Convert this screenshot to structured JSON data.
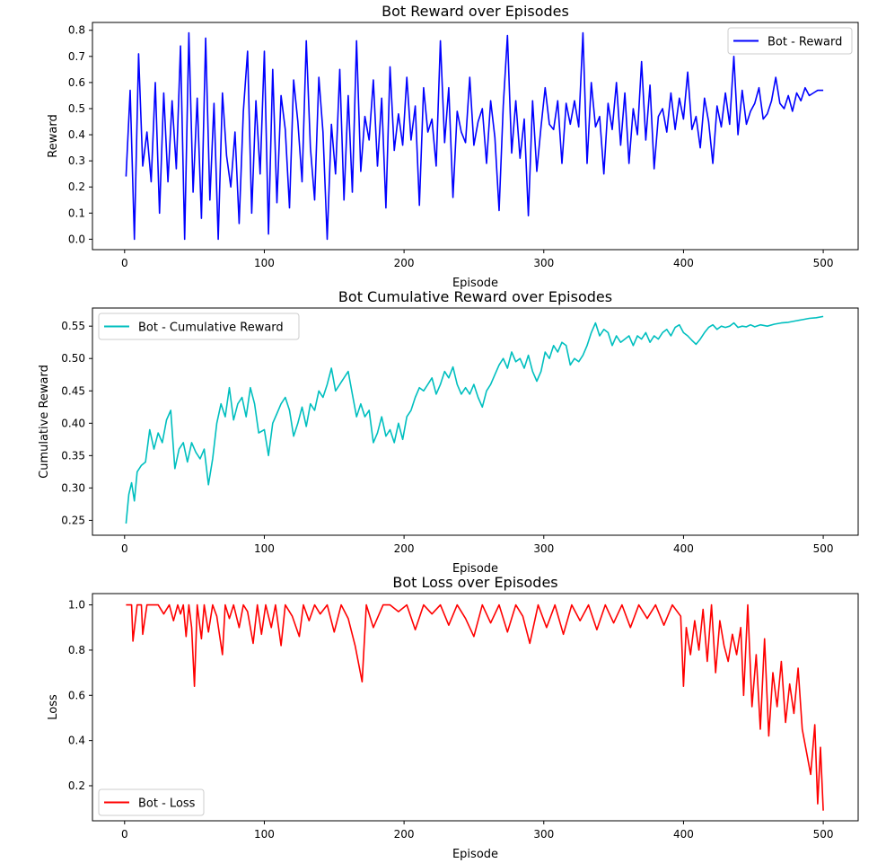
{
  "chart_data": [
    {
      "type": "line",
      "title": "Bot Reward over Episodes",
      "xlabel": "Episode",
      "ylabel": "Reward",
      "xlim": [
        -23,
        525
      ],
      "ylim": [
        -0.04,
        0.83
      ],
      "xticks": [
        0,
        100,
        200,
        300,
        400,
        500
      ],
      "yticks": [
        0.0,
        0.1,
        0.2,
        0.3,
        0.4,
        0.5,
        0.6,
        0.7,
        0.8
      ],
      "ytick_labels": [
        "0.0",
        "0.1",
        "0.2",
        "0.3",
        "0.4",
        "0.5",
        "0.6",
        "0.7",
        "0.8"
      ],
      "legend": "upper right",
      "series": [
        {
          "name": "Bot - Reward",
          "color": "#0000ff",
          "x": [
            1,
            4,
            7,
            10,
            13,
            16,
            19,
            22,
            25,
            28,
            31,
            34,
            37,
            40,
            43,
            46,
            49,
            52,
            55,
            58,
            61,
            64,
            67,
            70,
            73,
            76,
            79,
            82,
            85,
            88,
            91,
            94,
            97,
            100,
            103,
            106,
            109,
            112,
            115,
            118,
            121,
            124,
            127,
            130,
            133,
            136,
            139,
            142,
            145,
            148,
            151,
            154,
            157,
            160,
            163,
            166,
            169,
            172,
            175,
            178,
            181,
            184,
            187,
            190,
            193,
            196,
            199,
            202,
            205,
            208,
            211,
            214,
            217,
            220,
            223,
            226,
            229,
            232,
            235,
            238,
            241,
            244,
            247,
            250,
            253,
            256,
            259,
            262,
            265,
            268,
            271,
            274,
            277,
            280,
            283,
            286,
            289,
            292,
            295,
            298,
            301,
            304,
            307,
            310,
            313,
            316,
            319,
            322,
            325,
            328,
            331,
            334,
            337,
            340,
            343,
            346,
            349,
            352,
            355,
            358,
            361,
            364,
            367,
            370,
            373,
            376,
            379,
            382,
            385,
            388,
            391,
            394,
            397,
            400,
            403,
            406,
            409,
            412,
            415,
            418,
            421,
            424,
            427,
            430,
            433,
            436,
            439,
            442,
            445,
            448,
            451,
            454,
            457,
            460,
            463,
            466,
            469,
            472,
            475,
            478,
            481,
            484,
            487,
            490,
            493,
            496,
            499,
            500
          ],
          "y": [
            0.24,
            0.57,
            0.0,
            0.71,
            0.28,
            0.41,
            0.22,
            0.6,
            0.1,
            0.56,
            0.22,
            0.53,
            0.27,
            0.74,
            0.0,
            0.79,
            0.18,
            0.54,
            0.08,
            0.77,
            0.15,
            0.52,
            0.0,
            0.56,
            0.32,
            0.2,
            0.41,
            0.06,
            0.49,
            0.72,
            0.1,
            0.53,
            0.25,
            0.72,
            0.02,
            0.65,
            0.14,
            0.55,
            0.42,
            0.12,
            0.61,
            0.45,
            0.22,
            0.76,
            0.35,
            0.15,
            0.62,
            0.41,
            0.0,
            0.44,
            0.25,
            0.65,
            0.15,
            0.55,
            0.18,
            0.76,
            0.26,
            0.47,
            0.38,
            0.61,
            0.28,
            0.54,
            0.12,
            0.66,
            0.34,
            0.48,
            0.36,
            0.62,
            0.38,
            0.51,
            0.13,
            0.58,
            0.41,
            0.46,
            0.28,
            0.76,
            0.37,
            0.58,
            0.16,
            0.49,
            0.41,
            0.37,
            0.62,
            0.36,
            0.45,
            0.5,
            0.29,
            0.53,
            0.39,
            0.11,
            0.51,
            0.78,
            0.33,
            0.53,
            0.31,
            0.46,
            0.09,
            0.53,
            0.26,
            0.43,
            0.58,
            0.44,
            0.42,
            0.53,
            0.29,
            0.52,
            0.44,
            0.53,
            0.43,
            0.79,
            0.29,
            0.6,
            0.43,
            0.47,
            0.25,
            0.52,
            0.42,
            0.6,
            0.36,
            0.56,
            0.29,
            0.5,
            0.4,
            0.68,
            0.38,
            0.59,
            0.27,
            0.47,
            0.5,
            0.41,
            0.56,
            0.42,
            0.54,
            0.46,
            0.64,
            0.42,
            0.47,
            0.35,
            0.54,
            0.45,
            0.29,
            0.51,
            0.43,
            0.56,
            0.44,
            0.7,
            0.4,
            0.57,
            0.44,
            0.49,
            0.52,
            0.58,
            0.46,
            0.48,
            0.53,
            0.62,
            0.52,
            0.5,
            0.55,
            0.49,
            0.56,
            0.53,
            0.58,
            0.55,
            0.56,
            0.57,
            0.57,
            0.57
          ]
        }
      ]
    },
    {
      "type": "line",
      "title": "Bot Cumulative Reward over Episodes",
      "xlabel": "Episode",
      "ylabel": "Cumulative Reward",
      "xlim": [
        -23,
        525
      ],
      "ylim": [
        0.227,
        0.578
      ],
      "xticks": [
        0,
        100,
        200,
        300,
        400,
        500
      ],
      "yticks": [
        0.25,
        0.3,
        0.35,
        0.4,
        0.45,
        0.5,
        0.55
      ],
      "ytick_labels": [
        "0.25",
        "0.30",
        "0.35",
        "0.40",
        "0.45",
        "0.50",
        "0.55"
      ],
      "legend": "upper left",
      "series": [
        {
          "name": "Bot - Cumulative Reward",
          "color": "#00bfbf",
          "x": [
            1,
            3,
            5,
            7,
            9,
            12,
            15,
            18,
            21,
            24,
            27,
            30,
            33,
            36,
            39,
            42,
            45,
            48,
            51,
            54,
            57,
            60,
            63,
            66,
            69,
            72,
            75,
            78,
            81,
            84,
            87,
            90,
            93,
            96,
            100,
            103,
            106,
            109,
            112,
            115,
            118,
            121,
            124,
            127,
            130,
            133,
            136,
            139,
            142,
            145,
            148,
            151,
            154,
            157,
            160,
            163,
            166,
            169,
            172,
            175,
            178,
            181,
            184,
            187,
            190,
            193,
            196,
            199,
            202,
            205,
            208,
            211,
            214,
            217,
            220,
            223,
            226,
            229,
            232,
            235,
            238,
            241,
            244,
            247,
            250,
            253,
            256,
            259,
            262,
            265,
            268,
            271,
            274,
            277,
            280,
            283,
            286,
            289,
            292,
            295,
            298,
            301,
            304,
            307,
            310,
            313,
            316,
            319,
            322,
            325,
            328,
            331,
            334,
            337,
            340,
            343,
            346,
            349,
            352,
            355,
            358,
            361,
            364,
            367,
            370,
            373,
            376,
            379,
            382,
            385,
            388,
            391,
            394,
            397,
            400,
            403,
            406,
            409,
            412,
            415,
            418,
            421,
            424,
            427,
            430,
            433,
            436,
            439,
            442,
            445,
            448,
            451,
            455,
            460,
            465,
            470,
            475,
            480,
            485,
            490,
            495,
            500
          ],
          "y": [
            0.245,
            0.29,
            0.308,
            0.28,
            0.325,
            0.335,
            0.34,
            0.39,
            0.36,
            0.385,
            0.37,
            0.405,
            0.42,
            0.33,
            0.36,
            0.37,
            0.34,
            0.37,
            0.355,
            0.345,
            0.36,
            0.305,
            0.345,
            0.4,
            0.43,
            0.41,
            0.455,
            0.405,
            0.43,
            0.44,
            0.41,
            0.455,
            0.43,
            0.385,
            0.39,
            0.35,
            0.4,
            0.415,
            0.43,
            0.44,
            0.42,
            0.38,
            0.4,
            0.425,
            0.395,
            0.43,
            0.42,
            0.45,
            0.44,
            0.46,
            0.485,
            0.45,
            0.46,
            0.47,
            0.48,
            0.445,
            0.41,
            0.43,
            0.41,
            0.42,
            0.37,
            0.385,
            0.41,
            0.38,
            0.39,
            0.37,
            0.4,
            0.375,
            0.41,
            0.42,
            0.44,
            0.455,
            0.45,
            0.46,
            0.47,
            0.445,
            0.46,
            0.48,
            0.47,
            0.487,
            0.46,
            0.445,
            0.455,
            0.445,
            0.46,
            0.44,
            0.425,
            0.45,
            0.46,
            0.475,
            0.49,
            0.5,
            0.485,
            0.51,
            0.495,
            0.5,
            0.485,
            0.505,
            0.48,
            0.465,
            0.48,
            0.51,
            0.5,
            0.52,
            0.51,
            0.525,
            0.52,
            0.49,
            0.5,
            0.495,
            0.505,
            0.52,
            0.54,
            0.555,
            0.535,
            0.545,
            0.54,
            0.52,
            0.535,
            0.525,
            0.53,
            0.535,
            0.52,
            0.535,
            0.53,
            0.54,
            0.525,
            0.535,
            0.53,
            0.54,
            0.545,
            0.535,
            0.548,
            0.552,
            0.54,
            0.535,
            0.528,
            0.522,
            0.53,
            0.54,
            0.548,
            0.552,
            0.545,
            0.55,
            0.548,
            0.55,
            0.555,
            0.548,
            0.55,
            0.549,
            0.552,
            0.549,
            0.552,
            0.55,
            0.553,
            0.555,
            0.556,
            0.558,
            0.56,
            0.562,
            0.563,
            0.565
          ]
        }
      ]
    },
    {
      "type": "line",
      "title": "Bot Loss over Episodes",
      "xlabel": "Episode",
      "ylabel": "Loss",
      "xlim": [
        -23,
        525
      ],
      "ylim": [
        0.045,
        1.05
      ],
      "xticks": [
        0,
        100,
        200,
        300,
        400,
        500
      ],
      "yticks": [
        0.2,
        0.4,
        0.6,
        0.8,
        1.0
      ],
      "ytick_labels": [
        "0.2",
        "0.4",
        "0.6",
        "0.8",
        "1.0"
      ],
      "legend": "lower left",
      "series": [
        {
          "name": "Bot - Loss",
          "color": "#ff0000",
          "x": [
            1,
            5,
            6,
            9,
            12,
            13,
            16,
            20,
            24,
            28,
            32,
            35,
            38,
            40,
            42,
            44,
            46,
            48,
            50,
            52,
            55,
            57,
            60,
            63,
            66,
            70,
            72,
            75,
            78,
            82,
            85,
            88,
            92,
            95,
            98,
            101,
            105,
            108,
            112,
            115,
            120,
            125,
            128,
            132,
            136,
            140,
            145,
            150,
            155,
            160,
            165,
            170,
            173,
            178,
            185,
            190,
            196,
            202,
            208,
            214,
            220,
            226,
            232,
            238,
            244,
            250,
            256,
            262,
            268,
            274,
            280,
            285,
            290,
            296,
            302,
            308,
            314,
            320,
            326,
            332,
            338,
            344,
            350,
            356,
            362,
            368,
            374,
            380,
            386,
            392,
            398,
            400,
            402,
            405,
            408,
            411,
            414,
            417,
            420,
            423,
            426,
            429,
            432,
            435,
            438,
            441,
            443,
            446,
            449,
            452,
            455,
            458,
            461,
            464,
            467,
            470,
            473,
            476,
            479,
            482,
            485,
            488,
            491,
            494,
            496,
            498,
            500
          ],
          "y": [
            1.0,
            1.0,
            0.84,
            1.0,
            1.0,
            0.87,
            1.0,
            1.0,
            1.0,
            0.96,
            1.0,
            0.93,
            1.0,
            0.96,
            1.0,
            0.86,
            1.0,
            0.9,
            0.64,
            1.0,
            0.85,
            1.0,
            0.88,
            1.0,
            0.95,
            0.78,
            1.0,
            0.94,
            1.0,
            0.9,
            1.0,
            0.97,
            0.83,
            1.0,
            0.87,
            1.0,
            0.9,
            1.0,
            0.82,
            1.0,
            0.95,
            0.86,
            1.0,
            0.93,
            1.0,
            0.96,
            1.0,
            0.88,
            1.0,
            0.94,
            0.82,
            0.66,
            1.0,
            0.9,
            1.0,
            1.0,
            0.97,
            1.0,
            0.89,
            1.0,
            0.96,
            1.0,
            0.91,
            1.0,
            0.94,
            0.86,
            1.0,
            0.92,
            1.0,
            0.88,
            1.0,
            0.95,
            0.83,
            1.0,
            0.9,
            1.0,
            0.87,
            1.0,
            0.93,
            1.0,
            0.89,
            1.0,
            0.92,
            1.0,
            0.9,
            1.0,
            0.94,
            1.0,
            0.91,
            1.0,
            0.95,
            0.64,
            0.9,
            0.78,
            0.93,
            0.8,
            0.98,
            0.75,
            1.0,
            0.7,
            0.93,
            0.82,
            0.75,
            0.87,
            0.78,
            0.9,
            0.6,
            1.0,
            0.55,
            0.78,
            0.45,
            0.85,
            0.42,
            0.7,
            0.55,
            0.75,
            0.48,
            0.65,
            0.52,
            0.72,
            0.45,
            0.35,
            0.25,
            0.47,
            0.12,
            0.37,
            0.09
          ]
        }
      ]
    }
  ]
}
